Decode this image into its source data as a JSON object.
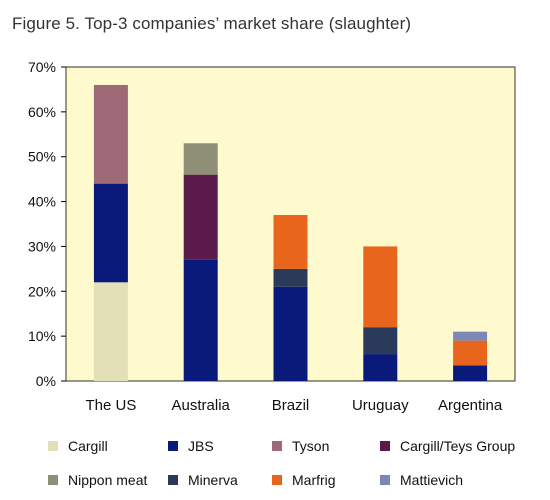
{
  "title": "Figure 5. Top-3 companies’ market share (slaughter)",
  "colors": {
    "Cargill": "#e3e0b8",
    "JBS": "#0a1a7a",
    "Tyson": "#9e6a77",
    "Cargill/Teys Group": "#5a1a4a",
    "Nippon meat": "#8f8f77",
    "Minerva": "#2a3a5a",
    "Marfrig": "#e8651e",
    "Mattievich": "#7d87b5"
  },
  "chart_data": {
    "type": "bar",
    "stacked": true,
    "categories": [
      "The US",
      "Australia",
      "Brazil",
      "Uruguay",
      "Argentina"
    ],
    "yticks": [
      "0%",
      "10%",
      "20%",
      "30%",
      "40%",
      "50%",
      "60%",
      "70%"
    ],
    "ylim": [
      0,
      70
    ],
    "plot_background": "#fffacd",
    "series": [
      {
        "name": "Cargill",
        "values": [
          22,
          0,
          0,
          0,
          0
        ]
      },
      {
        "name": "JBS",
        "values": [
          22,
          27,
          21,
          6,
          3.5
        ]
      },
      {
        "name": "Tyson",
        "values": [
          22,
          0,
          0,
          0,
          0
        ]
      },
      {
        "name": "Cargill/Teys Group",
        "values": [
          0,
          19,
          0,
          0,
          0
        ]
      },
      {
        "name": "Nippon meat",
        "values": [
          0,
          7,
          0,
          0,
          0
        ]
      },
      {
        "name": "Minerva",
        "values": [
          0,
          0,
          4,
          6,
          0
        ]
      },
      {
        "name": "Marfrig",
        "values": [
          0,
          0,
          12,
          18,
          5.5
        ]
      },
      {
        "name": "Mattievich",
        "values": [
          0,
          0,
          0,
          0,
          2
        ]
      }
    ],
    "legend": [
      "Cargill",
      "JBS",
      "Tyson",
      "Cargill/Teys Group",
      "Nippon meat",
      "Minerva",
      "Marfrig",
      "Mattievich"
    ],
    "legend_position": "bottom"
  }
}
